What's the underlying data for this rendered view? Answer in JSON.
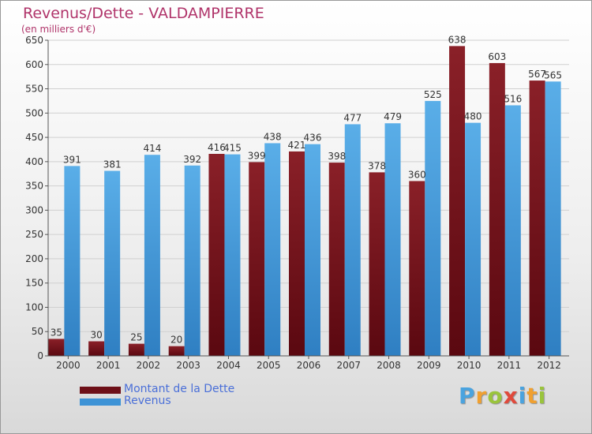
{
  "title": "Revenus/Dette - VALDAMPIERRE",
  "subtitle": "(en milliers d'€)",
  "logo": {
    "text": "Proxiti",
    "letters": [
      {
        "char": "P",
        "color": "#4aa3df"
      },
      {
        "char": "r",
        "color": "#f0a030"
      },
      {
        "char": "o",
        "color": "#9ac43c"
      },
      {
        "char": "x",
        "color": "#e04a3c"
      },
      {
        "char": "i",
        "color": "#4aa3df"
      },
      {
        "char": "t",
        "color": "#f0a030"
      },
      {
        "char": "i",
        "color": "#9ac43c"
      }
    ]
  },
  "colors": {
    "dette": "#6e1018",
    "revenus": "#3e93d6",
    "grid": "#d0d0d0",
    "axis": "#555555"
  },
  "chart_data": {
    "type": "bar",
    "title": "Revenus/Dette - VALDAMPIERRE",
    "subtitle": "(en milliers d'€)",
    "categories": [
      "2000",
      "2001",
      "2002",
      "2003",
      "2004",
      "2005",
      "2006",
      "2007",
      "2008",
      "2009",
      "2010",
      "2011",
      "2012"
    ],
    "series": [
      {
        "name": "Montant de la Dette",
        "values": [
          35,
          30,
          25,
          20,
          416,
          399,
          421,
          398,
          378,
          360,
          638,
          603,
          567
        ]
      },
      {
        "name": "Revenus",
        "values": [
          391,
          381,
          414,
          392,
          415,
          438,
          436,
          477,
          479,
          525,
          480,
          516,
          565
        ]
      }
    ],
    "yticks": [
      0,
      50,
      100,
      150,
      200,
      250,
      300,
      350,
      400,
      450,
      500,
      550,
      600,
      650
    ],
    "ylim": [
      0,
      650
    ],
    "grid": true,
    "legend_position": "bottom-left"
  }
}
